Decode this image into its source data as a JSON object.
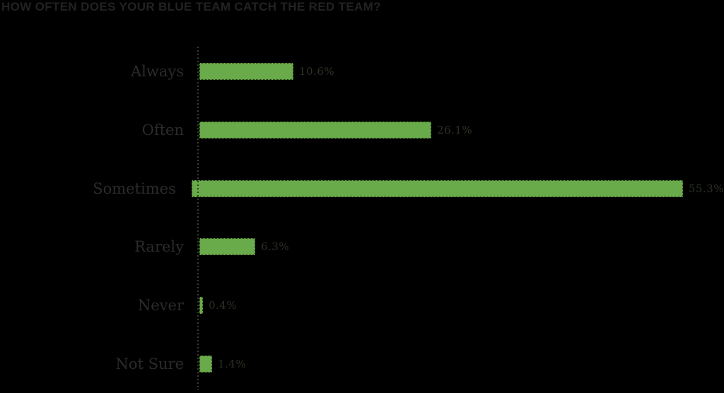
{
  "title": "HOW OFTEN DOES YOUR BLUE TEAM CATCH THE RED TEAM?",
  "colors": {
    "background": "#000000",
    "bar": "#69aa4b",
    "title_text": "#222222",
    "category_text": "#2b2b2b",
    "value_text": "#2c3126",
    "axis_dotted": "#36402e"
  },
  "chart_data": {
    "type": "bar",
    "orientation": "horizontal",
    "title": "HOW OFTEN DOES YOUR BLUE TEAM CATCH THE RED TEAM?",
    "categories": [
      "Always",
      "Often",
      "Sometimes",
      "Rarely",
      "Never",
      "Not Sure"
    ],
    "values": [
      10.6,
      26.1,
      55.3,
      6.3,
      0.4,
      1.4
    ],
    "value_labels": [
      "10.6%",
      "26.1%",
      "55.3%",
      "6.3%",
      "0.4%",
      "1.4%"
    ],
    "xlabel": "",
    "ylabel": "",
    "xlim": [
      0,
      58
    ],
    "grid": false,
    "legend": false,
    "axis_style": "dotted-vertical-baseline",
    "bar_color": "#69aa4b"
  }
}
